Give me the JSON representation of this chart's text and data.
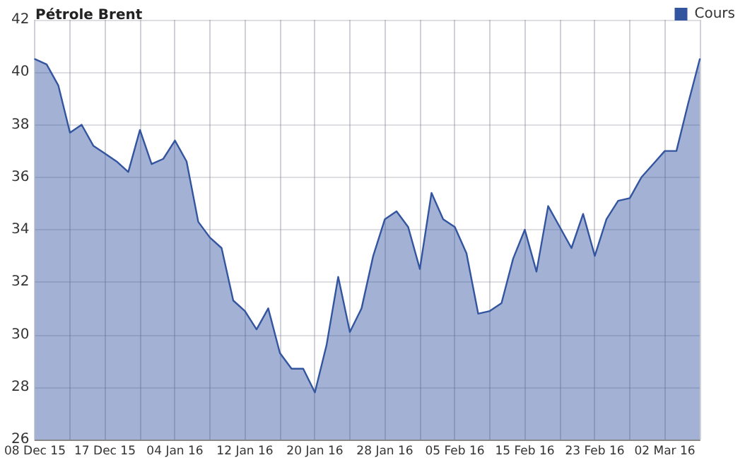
{
  "chart_data": {
    "type": "area",
    "title": "Pétrole Brent",
    "categories": [
      "08 Dec 15",
      null,
      null,
      null,
      null,
      null,
      "17 Dec 15",
      null,
      null,
      null,
      null,
      null,
      "04 Jan 16",
      null,
      null,
      null,
      null,
      null,
      "12 Jan 16",
      null,
      null,
      null,
      null,
      null,
      "20 Jan 16",
      null,
      null,
      null,
      null,
      null,
      "28 Jan 16",
      null,
      null,
      null,
      null,
      null,
      "05 Feb 16",
      null,
      null,
      null,
      null,
      null,
      "15 Feb 16",
      null,
      null,
      null,
      null,
      null,
      "23 Feb 16",
      null,
      null,
      null,
      null,
      null,
      "02 Mar 16",
      null,
      null,
      null
    ],
    "series": [
      {
        "name": "Cours",
        "color": "#3355a0",
        "values": [
          40.5,
          40.3,
          39.5,
          37.7,
          38.0,
          37.2,
          36.9,
          36.6,
          36.2,
          37.8,
          36.5,
          36.7,
          37.4,
          36.6,
          34.3,
          33.7,
          33.3,
          31.3,
          30.9,
          30.2,
          31.0,
          29.3,
          28.7,
          28.7,
          27.8,
          29.6,
          32.2,
          30.1,
          31.0,
          33.0,
          34.4,
          34.7,
          34.1,
          32.5,
          35.4,
          34.4,
          34.1,
          33.1,
          30.8,
          30.9,
          31.2,
          32.9,
          34.0,
          32.4,
          34.9,
          34.1,
          33.3,
          34.6,
          33.0,
          34.4,
          35.1,
          35.2,
          36.0,
          36.5,
          37.0,
          37.0,
          38.8,
          40.5
        ]
      }
    ],
    "ylim": [
      26,
      42
    ],
    "yticks": [
      26,
      28,
      30,
      32,
      34,
      36,
      38,
      40,
      42
    ],
    "grid": true,
    "legend": "top right",
    "marker": "none",
    "line_style": "solid"
  }
}
